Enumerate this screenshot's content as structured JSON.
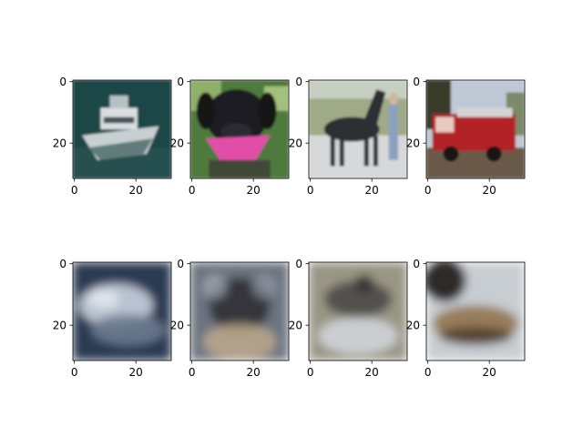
{
  "chart_data": [
    {
      "type": "heatmap",
      "row": "original",
      "subject": "boat",
      "xticks": [
        0,
        20
      ],
      "yticks": [
        0,
        20
      ],
      "xlim": [
        -0.5,
        31.5
      ],
      "ylim": [
        31.5,
        -0.5
      ],
      "dominant_colors": [
        "#1f4646",
        "#c8cfd0",
        "#5e7c7a"
      ]
    },
    {
      "type": "heatmap",
      "row": "original",
      "subject": "dog",
      "xticks": [
        0,
        20
      ],
      "yticks": [
        0,
        20
      ],
      "xlim": [
        -0.5,
        31.5
      ],
      "ylim": [
        31.5,
        -0.5
      ],
      "dominant_colors": [
        "#4f7a3c",
        "#1f1f24",
        "#e24ea8"
      ]
    },
    {
      "type": "heatmap",
      "row": "original",
      "subject": "horse",
      "xticks": [
        0,
        20
      ],
      "yticks": [
        0,
        20
      ],
      "xlim": [
        -0.5,
        31.5
      ],
      "ylim": [
        31.5,
        -0.5
      ],
      "dominant_colors": [
        "#9faa86",
        "#2e2e35",
        "#d7d8d9"
      ]
    },
    {
      "type": "heatmap",
      "row": "original",
      "subject": "fire truck",
      "xticks": [
        0,
        20
      ],
      "yticks": [
        0,
        20
      ],
      "xlim": [
        -0.5,
        31.5
      ],
      "ylim": [
        31.5,
        -0.5
      ],
      "dominant_colors": [
        "#bfc9d6",
        "#b32426",
        "#6b5a4a"
      ]
    },
    {
      "type": "heatmap",
      "row": "reconstruction",
      "subject": "boat",
      "xticks": [
        0,
        20
      ],
      "yticks": [
        0,
        20
      ],
      "xlim": [
        -0.5,
        31.5
      ],
      "ylim": [
        31.5,
        -0.5
      ],
      "dominant_colors": [
        "#2b3a52",
        "#c9d2de",
        "#6c7b8e"
      ]
    },
    {
      "type": "heatmap",
      "row": "reconstruction",
      "subject": "dog",
      "xticks": [
        0,
        20
      ],
      "yticks": [
        0,
        20
      ],
      "xlim": [
        -0.5,
        31.5
      ],
      "ylim": [
        31.5,
        -0.5
      ],
      "dominant_colors": [
        "#6d7480",
        "#2a2a2e",
        "#c2ac8c"
      ]
    },
    {
      "type": "heatmap",
      "row": "reconstruction",
      "subject": "horse",
      "xticks": [
        0,
        20
      ],
      "yticks": [
        0,
        20
      ],
      "xlim": [
        -0.5,
        31.5
      ],
      "ylim": [
        31.5,
        -0.5
      ],
      "dominant_colors": [
        "#9a9685",
        "#3b3a3c",
        "#d4d8de"
      ]
    },
    {
      "type": "heatmap",
      "row": "reconstruction",
      "subject": "fire truck",
      "xticks": [
        0,
        20
      ],
      "yticks": [
        0,
        20
      ],
      "xlim": [
        -0.5,
        31.5
      ],
      "ylim": [
        31.5,
        -0.5
      ],
      "dominant_colors": [
        "#1c1a19",
        "#c8cdd2",
        "#8e6e45"
      ]
    }
  ]
}
